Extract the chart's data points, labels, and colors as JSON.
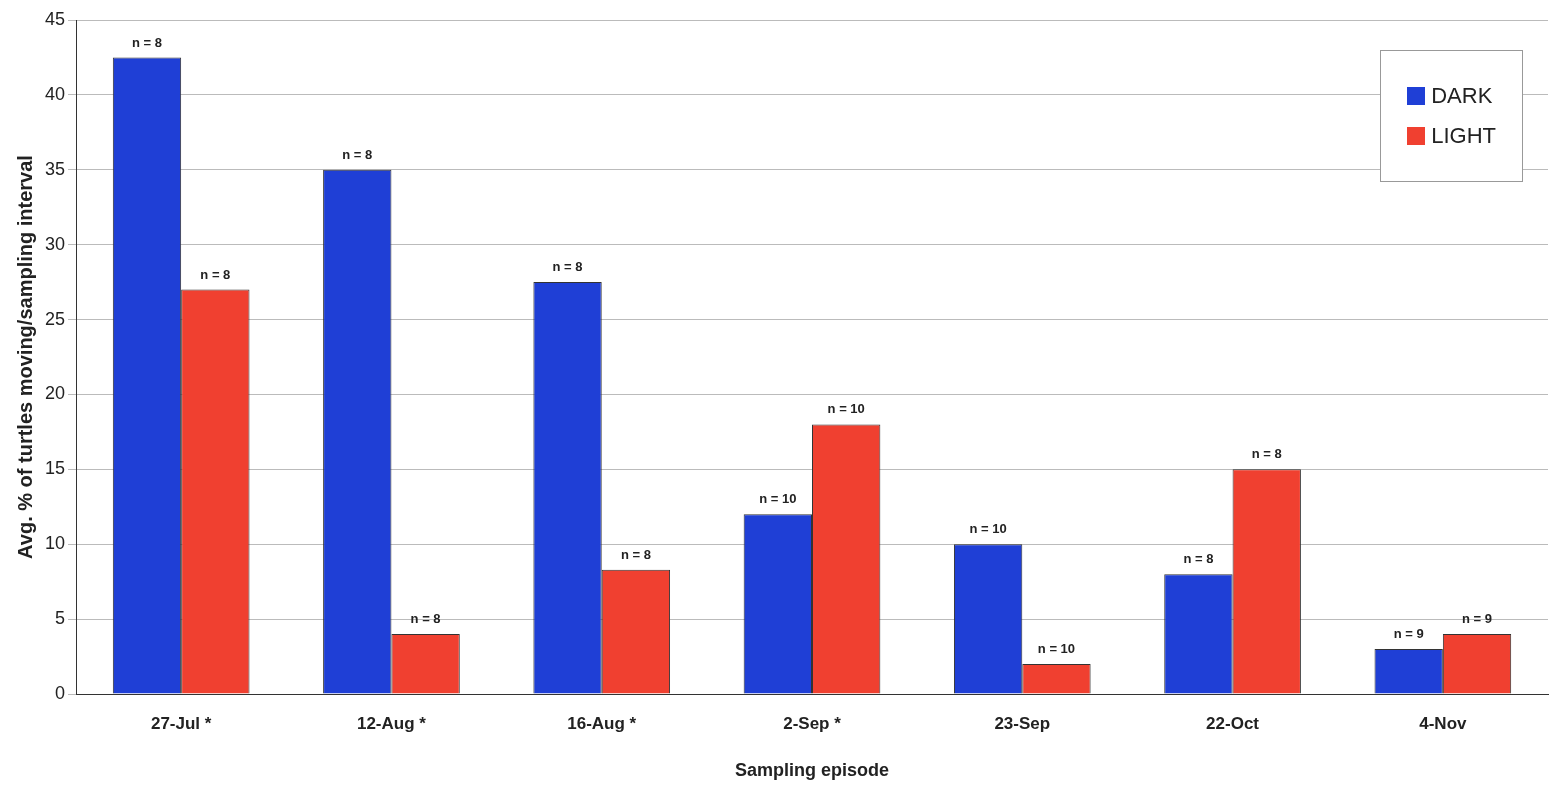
{
  "chart_data": {
    "type": "bar",
    "xlabel": "Sampling episode",
    "ylabel": "Avg. % of turtles moving/sampling interval",
    "categories": [
      "27-Jul *",
      "12-Aug *",
      "16-Aug *",
      "2-Sep *",
      "23-Sep",
      "22-Oct",
      "4-Nov"
    ],
    "series": [
      {
        "name": "DARK",
        "color": "#1f3fd6",
        "values": [
          42.5,
          35,
          27.5,
          12,
          10,
          8,
          3
        ]
      },
      {
        "name": "LIGHT",
        "color": "#f04030",
        "values": [
          27,
          4,
          8.3,
          18,
          2,
          15,
          4
        ]
      }
    ],
    "annotations": [
      {
        "text": "n = 8",
        "x": "27-Jul *",
        "y": 42.5
      },
      {
        "text": "n = 8",
        "x": "27-Jul *",
        "y": 27
      },
      {
        "text": "n = 8",
        "x": "12-Aug *",
        "y": 35
      },
      {
        "text": "n = 8",
        "x": "12-Aug *",
        "y": 4
      },
      {
        "text": "n = 8",
        "x": "16-Aug *",
        "y": 27.5
      },
      {
        "text": "n = 8",
        "x": "16-Aug *",
        "y": 8.3
      },
      {
        "text": "n = 10",
        "x": "2-Sep *",
        "y": 12
      },
      {
        "text": "n = 10",
        "x": "2-Sep *",
        "y": 18
      },
      {
        "text": "n = 10",
        "x": "23-Sep",
        "y": 10
      },
      {
        "text": "n = 10",
        "x": "23-Sep",
        "y": 2
      },
      {
        "text": "n = 8",
        "x": "22-Oct",
        "y": 8
      },
      {
        "text": "n = 8",
        "x": "22-Oct",
        "y": 15
      },
      {
        "text": "n = 9",
        "x": "4-Nov",
        "y": 3
      },
      {
        "text": "n = 9",
        "x": "4-Nov",
        "y": 4
      }
    ],
    "ylim": [
      0,
      45
    ],
    "yticks": [
      0,
      5,
      10,
      15,
      20,
      25,
      30,
      35,
      40,
      45
    ],
    "grid": "y",
    "legend": "top right"
  }
}
